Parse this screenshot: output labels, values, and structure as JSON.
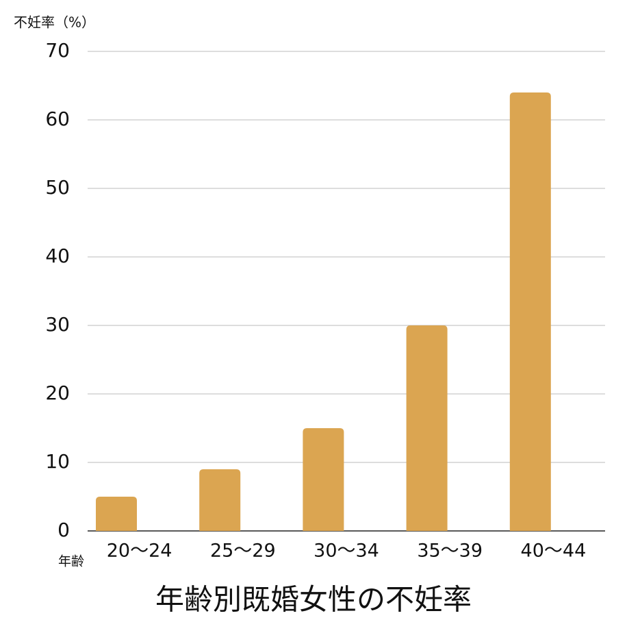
{
  "chart_data": {
    "type": "bar",
    "title": "年齢別既婚女性の不妊率",
    "y_label": "不妊率（%）",
    "x_label": "年齢",
    "categories": [
      "20〜24",
      "25〜29",
      "30〜34",
      "35〜39",
      "40〜44"
    ],
    "values": [
      5,
      9,
      15,
      30,
      64
    ],
    "color": "#dba551",
    "ylim": [
      0,
      70
    ],
    "yticks": [
      0,
      10,
      20,
      30,
      40,
      50,
      60,
      70
    ],
    "grid": true
  }
}
